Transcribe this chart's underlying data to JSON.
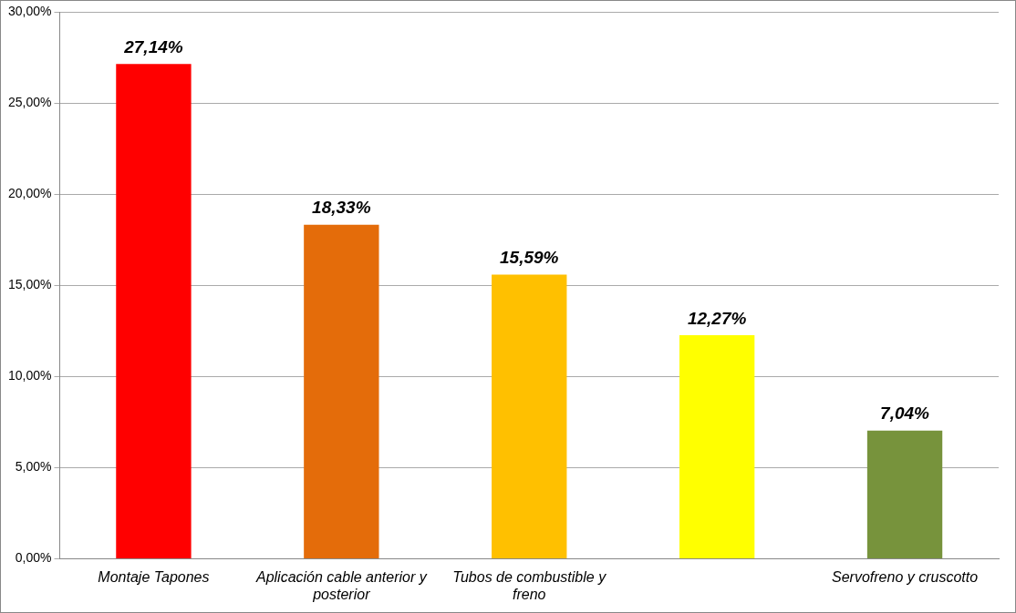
{
  "chart_data": {
    "type": "bar",
    "categories": [
      "Montaje Tapones",
      "Aplicación cable anterior y posterior",
      "Tubos de combustible y freno",
      null,
      "Servofreno y cruscotto"
    ],
    "values": [
      27.14,
      18.33,
      15.59,
      12.27,
      7.04
    ],
    "colors": [
      "#ff0000",
      "#e46c0a",
      "#ffc000",
      "#ffff00",
      "#77933c"
    ],
    "value_labels": [
      "27,14%",
      "18,33%",
      "15,59%",
      "12,27%",
      "7,04%"
    ],
    "ylim": [
      0,
      30
    ],
    "yticks": [
      {
        "value": 0,
        "label": "0,00%"
      },
      {
        "value": 5,
        "label": "5,00%"
      },
      {
        "value": 10,
        "label": "10,00%"
      },
      {
        "value": 15,
        "label": "15,00%"
      },
      {
        "value": 20,
        "label": "20,00%"
      },
      {
        "value": 25,
        "label": "25,00%"
      },
      {
        "value": 30,
        "label": "30,00%"
      }
    ],
    "grid": "y",
    "legend": false
  }
}
